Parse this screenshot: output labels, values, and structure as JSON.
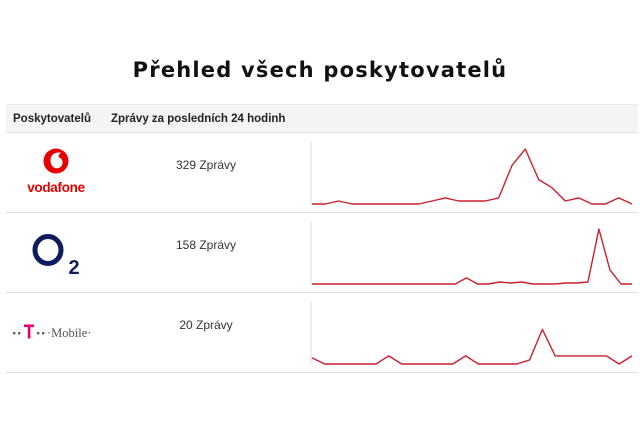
{
  "page": {
    "title": "Přehled všech poskytovatelů"
  },
  "table": {
    "headers": {
      "provider": "Poskytovatelů",
      "messages": "Zprávy za posledních 24 hodinh"
    },
    "rows": [
      {
        "provider": "Vodafone",
        "logo_text": "vodafone",
        "logo_color": "#e60000",
        "count_label": "329 Zprávy",
        "spark": [
          0,
          0,
          1.5,
          0,
          0,
          0,
          0,
          0,
          0,
          1.5,
          3,
          1.5,
          1.5,
          1.5,
          3,
          19,
          27,
          12,
          8,
          1.5,
          3,
          0,
          0,
          3,
          0
        ]
      },
      {
        "provider": "O2",
        "logo_text": "O2",
        "logo_color": "#0c1f5c",
        "count_label": "158 Zprávy",
        "spark": [
          0,
          0,
          0,
          0,
          0,
          0,
          0,
          0,
          0,
          0,
          0,
          0,
          0,
          0,
          3,
          0,
          0,
          1,
          0.5,
          1,
          0,
          0,
          0,
          0.5,
          0.5,
          1,
          27,
          7,
          0,
          0
        ]
      },
      {
        "provider": "T-Mobile",
        "logo_text": "T Mobile",
        "logo_color": "#e20074",
        "count_label": "20 Zprávy",
        "spark": [
          3,
          0,
          0,
          0,
          0,
          0,
          4,
          0,
          0,
          0,
          0,
          0,
          4,
          0,
          0,
          0,
          0,
          2,
          17,
          4,
          4,
          4,
          4,
          4,
          0,
          4
        ]
      }
    ]
  },
  "colors": {
    "sparkline": "#cc1f2e",
    "header_bg": "#f4f4f4",
    "row_border": "#dedede"
  }
}
